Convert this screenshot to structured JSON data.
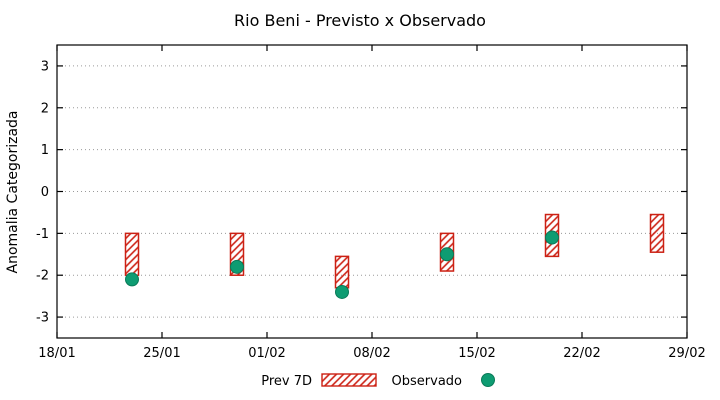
{
  "title": "Rio Beni - Previsto x Observado",
  "colors": {
    "bar": "#cc2114",
    "bar_hatch": "#cc2114",
    "point": "#0e9c72",
    "point_edge": "#0a7a58",
    "grid": "#9a9a9a",
    "axis": "#000000"
  },
  "chart_data": {
    "type": "bar",
    "title": "Rio Beni - Previsto x Observado",
    "xlabel": "",
    "ylabel": "Anomalia Categorizada",
    "ylim": [
      -3.5,
      3.5
    ],
    "yticks": [
      -3,
      -2,
      -1,
      0,
      1,
      2,
      3
    ],
    "x_range_days": [
      0,
      42
    ],
    "x_ticks": [
      {
        "label": "18/01",
        "day": 0
      },
      {
        "label": "25/01",
        "day": 7
      },
      {
        "label": "01/02",
        "day": 14
      },
      {
        "label": "08/02",
        "day": 21
      },
      {
        "label": "15/02",
        "day": 28
      },
      {
        "label": "22/02",
        "day": 35
      },
      {
        "label": "29/02",
        "day": 42
      }
    ],
    "grid": "horizontal-dotted",
    "legend_position": "bottom-center",
    "series": [
      {
        "name": "Prev 7D",
        "type": "range-bar",
        "style": "red-hatched",
        "bars": [
          {
            "date": "23/01",
            "day": 5,
            "low": -2.0,
            "high": -1.0
          },
          {
            "date": "30/01",
            "day": 12,
            "low": -2.0,
            "high": -1.0
          },
          {
            "date": "06/02",
            "day": 19,
            "low": -2.3,
            "high": -1.55
          },
          {
            "date": "13/02",
            "day": 26,
            "low": -1.9,
            "high": -1.0
          },
          {
            "date": "20/02",
            "day": 33,
            "low": -1.55,
            "high": -0.55
          },
          {
            "date": "27/02",
            "day": 40,
            "low": -1.45,
            "high": -0.55
          }
        ]
      },
      {
        "name": "Observado",
        "type": "scatter",
        "style": "green-filled-circle",
        "points": [
          {
            "date": "23/01",
            "day": 5,
            "value": -2.1
          },
          {
            "date": "30/01",
            "day": 12,
            "value": -1.8
          },
          {
            "date": "06/02",
            "day": 19,
            "value": -2.4
          },
          {
            "date": "13/02",
            "day": 26,
            "value": -1.5
          },
          {
            "date": "20/02",
            "day": 33,
            "value": -1.1
          }
        ]
      }
    ]
  }
}
